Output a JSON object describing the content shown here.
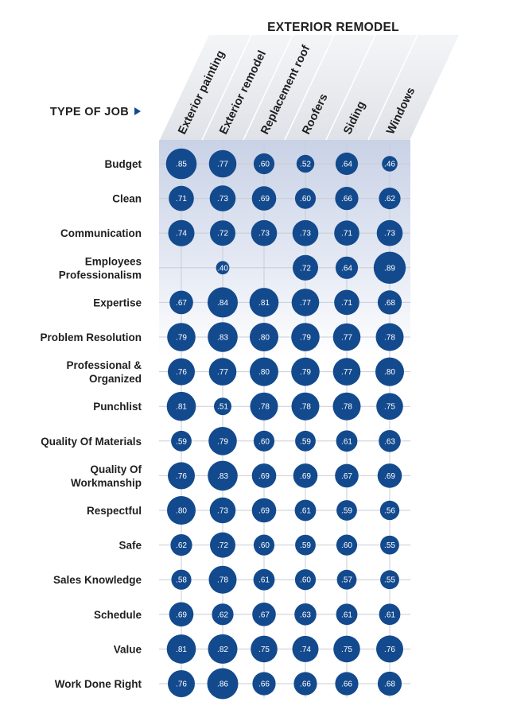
{
  "chart_data": {
    "type": "bubble-matrix",
    "title": "EXTERIOR REMODEL",
    "row_axis_label": "TYPE OF JOB",
    "columns": [
      "Exterior painting",
      "Exterior remodel",
      "Replacement roof",
      "Roofers",
      "Siding",
      "Windows"
    ],
    "rows": [
      {
        "label": [
          "Budget"
        ],
        "values": [
          ".85",
          ".77",
          ".60",
          ".52",
          ".64",
          ".46"
        ]
      },
      {
        "label": [
          "Clean"
        ],
        "values": [
          ".71",
          ".73",
          ".69",
          ".60",
          ".66",
          ".62"
        ]
      },
      {
        "label": [
          "Communication"
        ],
        "values": [
          ".74",
          ".72",
          ".73",
          ".73",
          ".71",
          ".73"
        ]
      },
      {
        "label": [
          "Employees",
          "Professionalism"
        ],
        "values": [
          null,
          ".40",
          null,
          ".72",
          ".64",
          ".89"
        ]
      },
      {
        "label": [
          "Expertise"
        ],
        "values": [
          ".67",
          ".84",
          ".81",
          ".77",
          ".71",
          ".68"
        ]
      },
      {
        "label": [
          "Problem Resolution"
        ],
        "values": [
          ".79",
          ".83",
          ".80",
          ".79",
          ".77",
          ".78"
        ]
      },
      {
        "label": [
          "Professional &",
          "Organized"
        ],
        "values": [
          ".76",
          ".77",
          ".80",
          ".79",
          ".77",
          ".80"
        ]
      },
      {
        "label": [
          "Punchlist"
        ],
        "values": [
          ".81",
          ".51",
          ".78",
          ".78",
          ".78",
          ".75"
        ]
      },
      {
        "label": [
          "Quality Of Materials"
        ],
        "values": [
          ".59",
          ".79",
          ".60",
          ".59",
          ".61",
          ".63"
        ]
      },
      {
        "label": [
          "Quality Of",
          "Workmanship"
        ],
        "values": [
          ".76",
          ".83",
          ".69",
          ".69",
          ".67",
          ".69"
        ]
      },
      {
        "label": [
          "Respectful"
        ],
        "values": [
          ".80",
          ".73",
          ".69",
          ".61",
          ".59",
          ".56"
        ]
      },
      {
        "label": [
          "Safe"
        ],
        "values": [
          ".62",
          ".72",
          ".60",
          ".59",
          ".60",
          ".55"
        ]
      },
      {
        "label": [
          "Sales Knowledge"
        ],
        "values": [
          ".58",
          ".78",
          ".61",
          ".60",
          ".57",
          ".55"
        ]
      },
      {
        "label": [
          "Schedule"
        ],
        "values": [
          ".69",
          ".62",
          ".67",
          ".63",
          ".61",
          ".61"
        ]
      },
      {
        "label": [
          "Value"
        ],
        "values": [
          ".81",
          ".82",
          ".75",
          ".74",
          ".75",
          ".76"
        ]
      },
      {
        "label": [
          "Work Done Right"
        ],
        "values": [
          ".76",
          ".86",
          ".66",
          ".66",
          ".66",
          ".68"
        ]
      }
    ],
    "colors": {
      "bubble": "#134a8e",
      "grid": "#c9ccd6",
      "arrow": "#134a8e",
      "text": "#1f1f1f",
      "shade_top": "#c9d2e6"
    }
  }
}
